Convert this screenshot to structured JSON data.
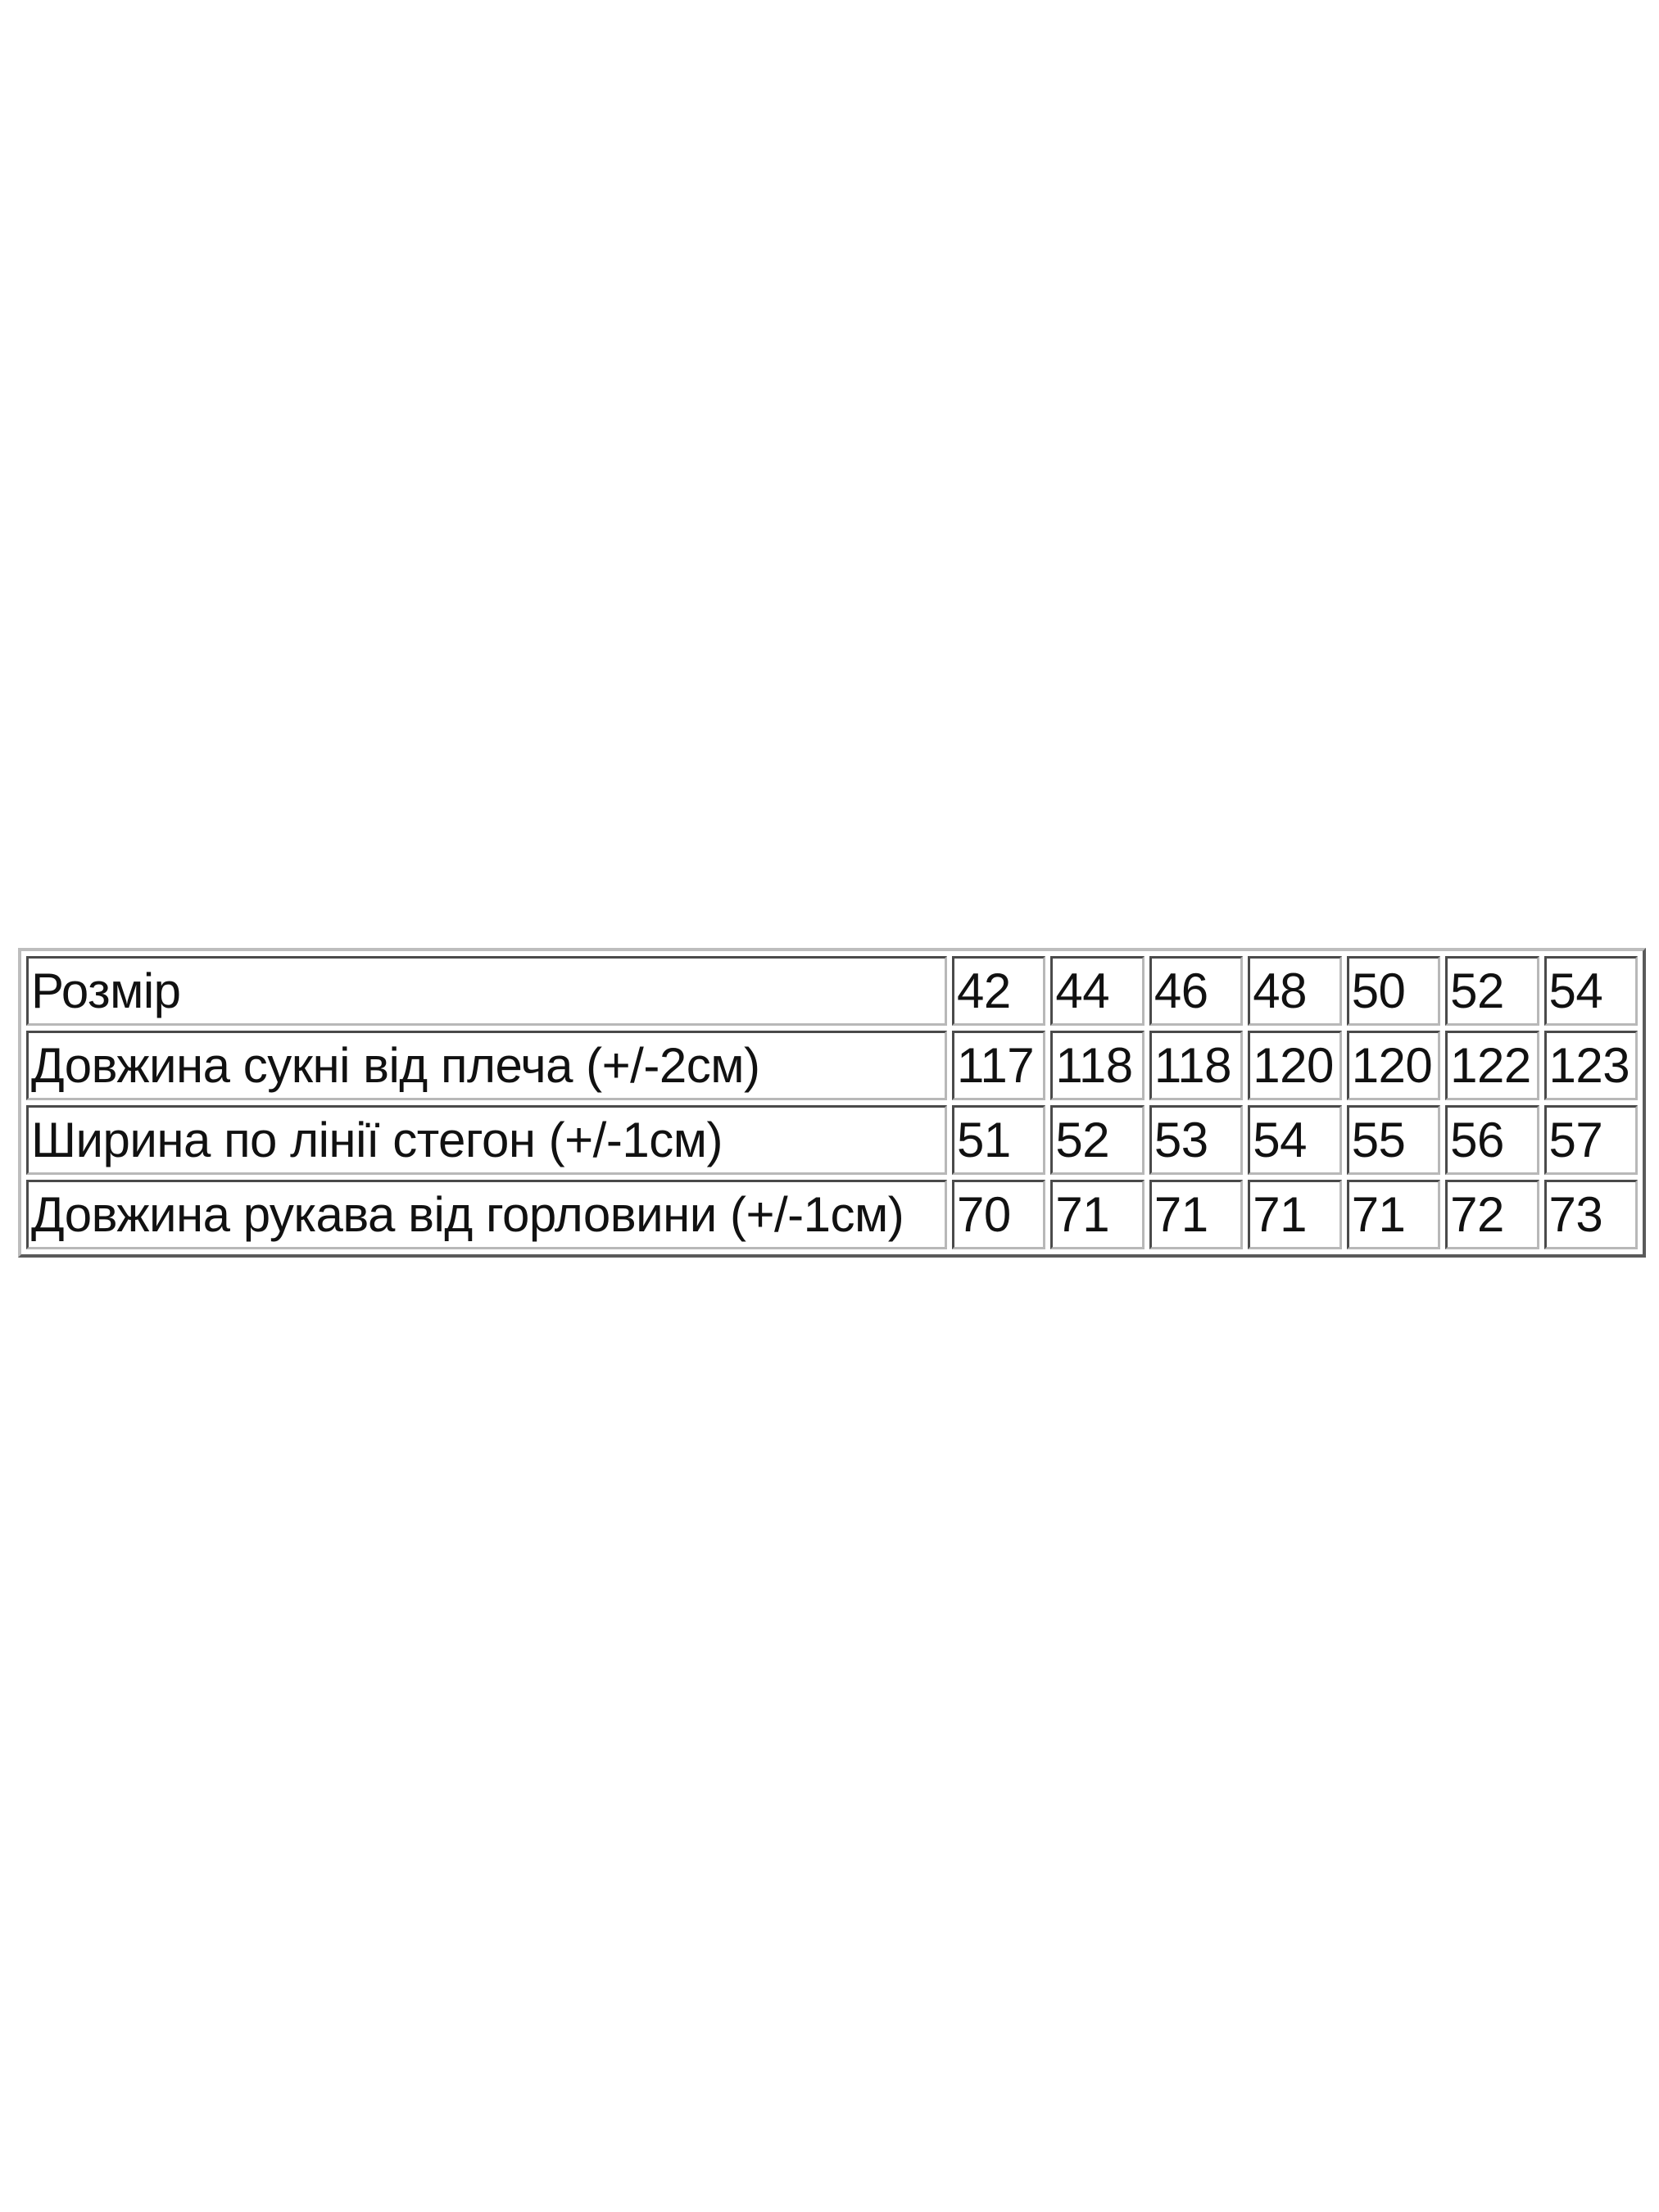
{
  "table": {
    "header": {
      "label": "Розмір",
      "values": [
        "42",
        "44",
        "46",
        "48",
        "50",
        "52",
        "54"
      ]
    },
    "rows": [
      {
        "label": "Довжина сукні від плеча (+/-2см)",
        "values": [
          "117",
          "118",
          "118",
          "120",
          "120",
          "122",
          "123"
        ]
      },
      {
        "label": "Ширина по лінії стегон (+/-1см)",
        "values": [
          "51",
          "52",
          "53",
          "54",
          "55",
          "56",
          "57"
        ]
      },
      {
        "label": "Довжина рукава від горловини (+/-1см)",
        "values": [
          "70",
          "71",
          "71",
          "71",
          "71",
          "72",
          "73"
        ]
      }
    ]
  }
}
